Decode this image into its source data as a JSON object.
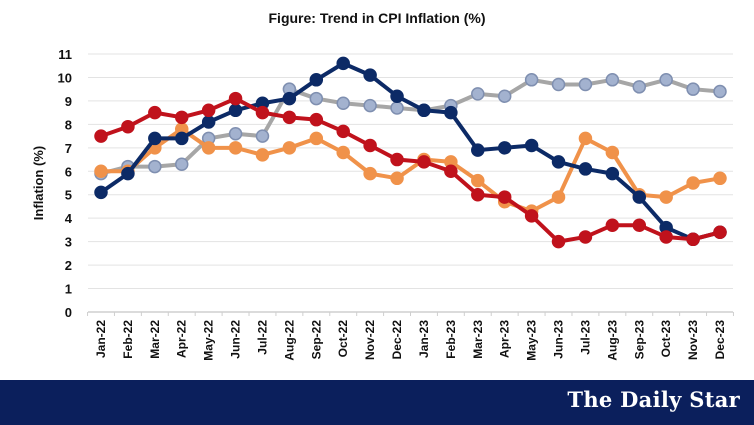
{
  "chart_data": {
    "type": "line",
    "title": "Figure: Trend in CPI Inflation (%)",
    "xlabel": "",
    "ylabel": "Inflation (%)",
    "ylim": [
      0,
      11
    ],
    "yticks": [
      "0",
      "1",
      "2",
      "3",
      "4",
      "5",
      "6",
      "7",
      "8",
      "9",
      "10",
      "11"
    ],
    "grid": true,
    "legend": "none",
    "categories": [
      "Jan-22",
      "Feb-22",
      "Mar-22",
      "Apr-22",
      "May-22",
      "Jun-22",
      "Jul-22",
      "Aug-22",
      "Sep-22",
      "Oct-22",
      "Nov-22",
      "Dec-22",
      "Jan-23",
      "Feb-23",
      "Mar-23",
      "Apr-23",
      "May-23",
      "Jun-23",
      "Jul-23",
      "Aug-23",
      "Sep-23",
      "Oct-23",
      "Nov-23",
      "Dec-23"
    ],
    "series": [
      {
        "key": "gray",
        "color": "#a6a6a6",
        "marker": "#a3b2cf",
        "markerEdge": "#7f8fb0",
        "values": [
          5.9,
          6.2,
          6.2,
          6.3,
          7.4,
          7.6,
          7.5,
          9.5,
          9.1,
          8.9,
          8.8,
          8.7,
          8.6,
          8.8,
          9.3,
          9.2,
          9.9,
          9.7,
          9.7,
          9.9,
          9.6,
          9.9,
          9.5,
          9.4
        ]
      },
      {
        "key": "orange",
        "color": "#f0924a",
        "marker": "#f0924a",
        "markerEdge": "#f0924a",
        "values": [
          6.0,
          6.0,
          7.0,
          7.8,
          7.0,
          7.0,
          6.7,
          7.0,
          7.4,
          6.8,
          5.9,
          5.7,
          6.5,
          6.4,
          5.6,
          4.7,
          4.3,
          4.9,
          7.4,
          6.8,
          5.0,
          4.9,
          5.5,
          5.7
        ]
      },
      {
        "key": "navy",
        "color": "#0c2a66",
        "marker": "#0c2a66",
        "markerEdge": "#0c2a66",
        "values": [
          5.1,
          5.9,
          7.4,
          7.4,
          8.1,
          8.6,
          8.9,
          9.1,
          9.9,
          10.6,
          10.1,
          9.2,
          8.6,
          8.5,
          6.9,
          7.0,
          7.1,
          6.4,
          6.1,
          5.9,
          4.9,
          3.6,
          3.1,
          3.4
        ]
      },
      {
        "key": "red",
        "color": "#c0121c",
        "marker": "#c0121c",
        "markerEdge": "#c0121c",
        "values": [
          7.5,
          7.9,
          8.5,
          8.3,
          8.6,
          9.1,
          8.5,
          8.3,
          8.2,
          7.7,
          7.1,
          6.5,
          6.4,
          6.0,
          5.0,
          4.9,
          4.1,
          3.0,
          3.2,
          3.7,
          3.7,
          3.2,
          3.1,
          3.4
        ]
      }
    ]
  },
  "footer": {
    "brand": "The Daily Star",
    "background": "#0b1f5c"
  }
}
